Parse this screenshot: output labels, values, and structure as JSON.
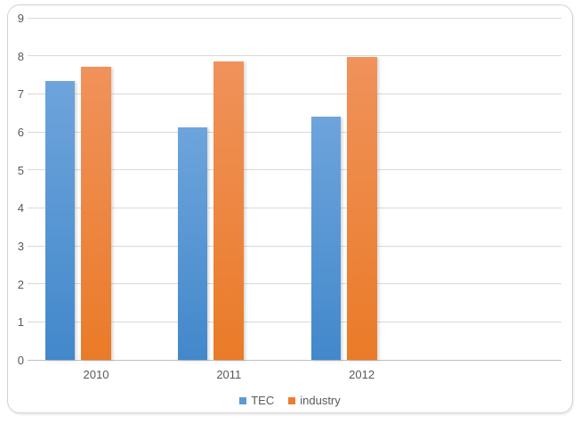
{
  "chart": {
    "frame_border_color": "#D2D2D6",
    "background": "#FFFFFF",
    "gridline_color": "#D9D9D9",
    "axis_line_color": "#BFBFBF",
    "text_color": "#595959"
  },
  "chart_data": {
    "type": "bar",
    "title": "",
    "xlabel": "",
    "ylabel": "",
    "categories": [
      "2010",
      "2011",
      "2012"
    ],
    "series": [
      {
        "name": "TEC",
        "color": "#5B9BD5",
        "fill_top": "#6EA4DC",
        "fill_bottom": "#4288CB",
        "values": [
          7.33,
          6.12,
          6.4
        ]
      },
      {
        "name": "industry",
        "color": "#ED7D31",
        "fill_top": "#F0925B",
        "fill_bottom": "#EA7B28",
        "values": [
          7.72,
          7.85,
          7.97
        ]
      }
    ],
    "ylim": [
      0,
      9
    ],
    "yticks": [
      0,
      1,
      2,
      3,
      4,
      5,
      6,
      7,
      8,
      9
    ],
    "grid": true,
    "legend_position": "bottom",
    "legend_entries": [
      "TEC",
      "industry"
    ]
  }
}
